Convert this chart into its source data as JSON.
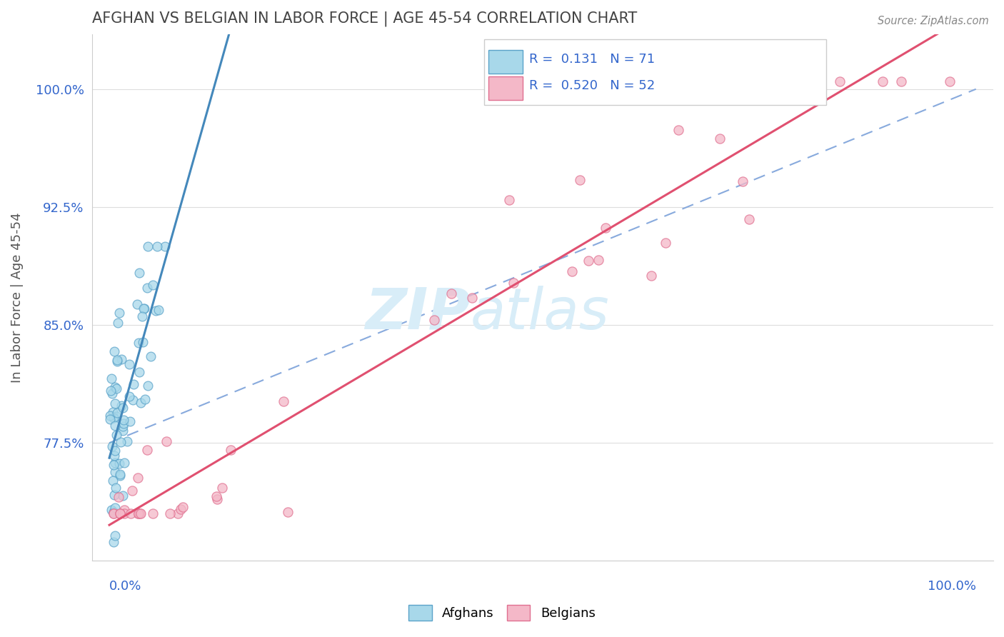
{
  "title": "AFGHAN VS BELGIAN IN LABOR FORCE | AGE 45-54 CORRELATION CHART",
  "source": "Source: ZipAtlas.com",
  "ylabel": "In Labor Force | Age 45-54",
  "legend_afghan_R": 0.131,
  "legend_afghan_N": 71,
  "legend_belgian_R": 0.52,
  "legend_belgian_N": 52,
  "xlim": [
    -0.02,
    1.02
  ],
  "ylim": [
    0.7,
    1.035
  ],
  "y_ticks": [
    0.775,
    0.85,
    0.925,
    1.0
  ],
  "y_tick_labels": [
    "77.5%",
    "85.0%",
    "92.5%",
    "100.0%"
  ],
  "color_afghan_fill": "#a8d8ea",
  "color_afghan_edge": "#5ba3c9",
  "color_afghan_line": "#4488bb",
  "color_belgian_fill": "#f4b8c8",
  "color_belgian_edge": "#e07090",
  "color_belgian_line": "#e05070",
  "color_dashed": "#88aadd",
  "color_axis_labels": "#3366cc",
  "color_title": "#444444",
  "watermark_color": "#d8edf8"
}
